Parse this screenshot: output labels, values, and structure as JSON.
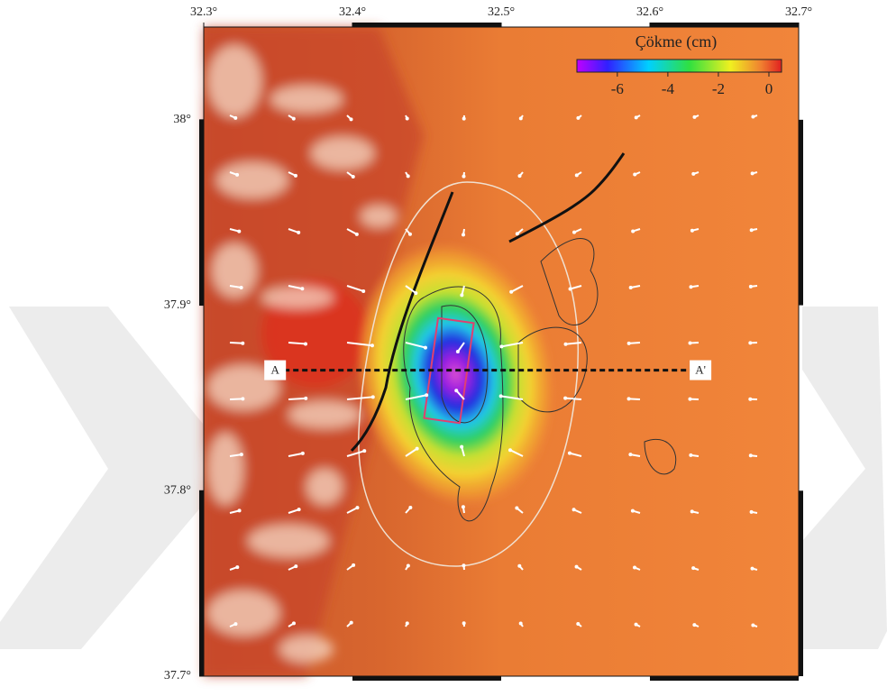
{
  "map": {
    "xlim": [
      32.3,
      32.7
    ],
    "ylim": [
      37.7,
      38.05
    ],
    "x_ticks": [
      {
        "value": 32.3,
        "label": "32.3°"
      },
      {
        "value": 32.4,
        "label": "32.4°"
      },
      {
        "value": 32.5,
        "label": "32.5°"
      },
      {
        "value": 32.6,
        "label": "32.6°"
      },
      {
        "value": 32.7,
        "label": "32.7°"
      }
    ],
    "y_ticks": [
      {
        "value": 38.0,
        "label": "38°"
      },
      {
        "value": 37.9,
        "label": "37.9°"
      },
      {
        "value": 37.8,
        "label": "37.8°"
      },
      {
        "value": 37.7,
        "label": "37.7°"
      }
    ],
    "colorbar": {
      "title": "Çökme (cm)",
      "lim": [
        -7.6,
        0.5
      ],
      "ticks": [
        -6,
        -4,
        -2,
        0
      ]
    },
    "profile": {
      "start_label": "A",
      "end_label": "A'",
      "start": [
        32.348,
        37.865
      ],
      "end": [
        32.634,
        37.865
      ]
    }
  }
}
